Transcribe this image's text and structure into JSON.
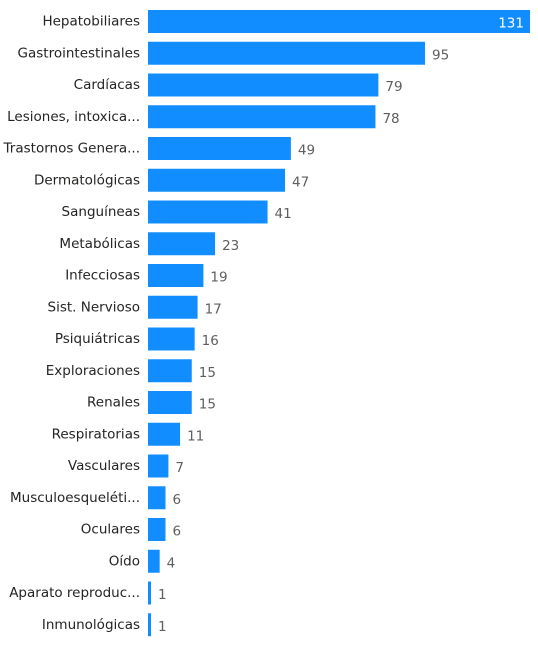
{
  "chart_data": {
    "type": "bar",
    "orientation": "horizontal",
    "title": "",
    "xlabel": "",
    "ylabel": "",
    "grid": false,
    "legend": "none",
    "bar_color": "#118dff",
    "xlim": [
      0,
      131
    ],
    "categories": [
      "Hepatobiliares",
      "Gastrointestinales",
      "Cardíacas",
      "Lesiones, intoxica...",
      "Trastornos Genera...",
      "Dermatológicas",
      "Sanguíneas",
      "Metabólicas",
      "Infecciosas",
      "Sist. Nervioso",
      "Psiquiátricas",
      "Exploraciones",
      "Renales",
      "Respiratorias",
      "Vasculares",
      "Musculoesqueléti...",
      "Oculares",
      "Oído",
      "Aparato reproduc...",
      "Inmunológicas"
    ],
    "values": [
      131,
      95,
      79,
      78,
      49,
      47,
      41,
      23,
      19,
      17,
      16,
      15,
      15,
      11,
      7,
      6,
      6,
      4,
      1,
      1
    ]
  }
}
